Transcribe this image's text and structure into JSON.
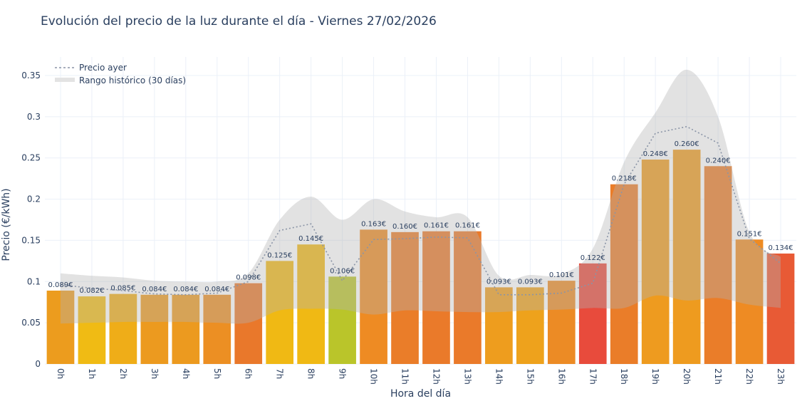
{
  "title": "Evolución del precio de la luz durante el día - Viernes 27/02/2026",
  "chart_data": {
    "type": "bar",
    "xlabel": "Hora del día",
    "ylabel": "Precio (€/kWh)",
    "ylim": [
      0,
      0.37
    ],
    "yticks": [
      0,
      0.05,
      0.1,
      0.15,
      0.2,
      0.25,
      0.3,
      0.35
    ],
    "ytick_labels": [
      "0",
      "0.05",
      "0.1",
      "0.15",
      "0.2",
      "0.25",
      "0.3",
      "0.35"
    ],
    "grid": true,
    "legend_position": "top-left",
    "categories": [
      "0h",
      "1h",
      "2h",
      "3h",
      "4h",
      "5h",
      "6h",
      "7h",
      "8h",
      "9h",
      "10h",
      "11h",
      "12h",
      "13h",
      "14h",
      "15h",
      "16h",
      "17h",
      "18h",
      "19h",
      "20h",
      "21h",
      "22h",
      "23h"
    ],
    "values": [
      0.089,
      0.082,
      0.085,
      0.084,
      0.084,
      0.084,
      0.098,
      0.125,
      0.145,
      0.106,
      0.163,
      0.16,
      0.161,
      0.161,
      0.093,
      0.093,
      0.101,
      0.122,
      0.218,
      0.248,
      0.26,
      0.24,
      0.151,
      0.134
    ],
    "data_labels": [
      "0.089€",
      "0.082€",
      "0.085€",
      "0.084€",
      "0.084€",
      "0.084€",
      "0.098€",
      "0.125€",
      "0.145€",
      "0.106€",
      "0.163€",
      "0.160€",
      "0.161€",
      "0.161€",
      "0.093€",
      "0.093€",
      "0.101€",
      "0.122€",
      "0.218€",
      "0.248€",
      "0.260€",
      "0.240€",
      "0.151€",
      "0.134€"
    ],
    "bar_colors": [
      "#ec9c1e",
      "#f0bb14",
      "#efad18",
      "#ec9a1f",
      "#ec9a1f",
      "#ec8f23",
      "#e9782b",
      "#f0b914",
      "#f0b914",
      "#bac52a",
      "#ee8b23",
      "#ea7d29",
      "#ea7a2a",
      "#ea7a2a",
      "#ee9d1e",
      "#eea21c",
      "#ec8b25",
      "#e84b3c",
      "#ea7d29",
      "#ee9b1f",
      "#ee9b1f",
      "#ea7d29",
      "#ee8b23",
      "#e85a35"
    ],
    "series": [
      {
        "name": "Precio ayer",
        "type": "line",
        "style": "dotted",
        "color": "#8a94a6",
        "values": [
          0.096,
          0.092,
          0.089,
          0.085,
          0.084,
          0.086,
          0.1,
          0.162,
          0.17,
          0.101,
          0.151,
          0.152,
          0.154,
          0.153,
          0.084,
          0.084,
          0.086,
          0.098,
          0.218,
          0.28,
          0.288,
          0.268,
          0.152,
          0.122
        ]
      },
      {
        "name": "Rango histórico (30 días)",
        "type": "band",
        "color": "#c8c8c8",
        "upper": [
          0.11,
          0.107,
          0.105,
          0.101,
          0.1,
          0.1,
          0.11,
          0.175,
          0.203,
          0.175,
          0.2,
          0.185,
          0.178,
          0.178,
          0.107,
          0.108,
          0.109,
          0.14,
          0.245,
          0.305,
          0.357,
          0.3,
          0.16,
          0.13
        ],
        "lower": [
          0.049,
          0.05,
          0.051,
          0.051,
          0.051,
          0.05,
          0.05,
          0.065,
          0.067,
          0.066,
          0.06,
          0.065,
          0.064,
          0.063,
          0.063,
          0.065,
          0.066,
          0.068,
          0.068,
          0.083,
          0.077,
          0.08,
          0.072,
          0.068
        ]
      }
    ]
  }
}
